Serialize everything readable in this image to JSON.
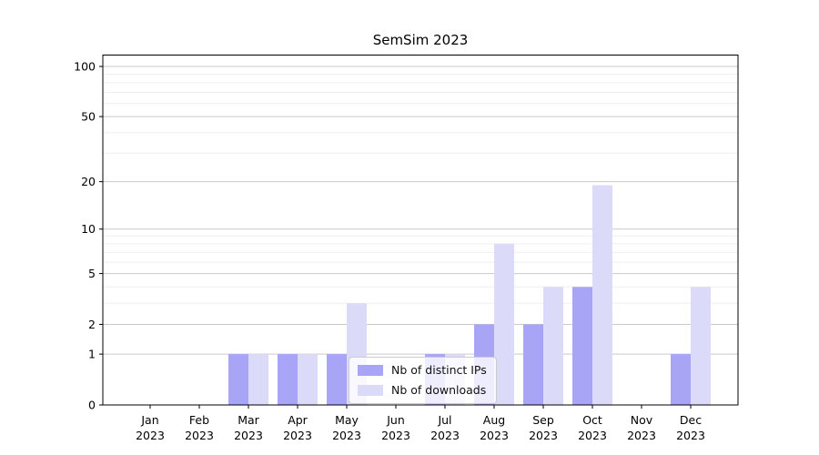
{
  "chart_data": {
    "type": "bar",
    "title": "SemSim 2023",
    "categories": [
      "Jan",
      "Feb",
      "Mar",
      "Apr",
      "May",
      "Jun",
      "Jul",
      "Aug",
      "Sep",
      "Oct",
      "Nov",
      "Dec"
    ],
    "x_tick_year": "2023",
    "series": [
      {
        "name": "Nb of distinct IPs",
        "color": "#a8a5f6",
        "values": [
          0,
          0,
          1,
          1,
          1,
          0,
          1,
          2,
          2,
          4,
          0,
          1
        ]
      },
      {
        "name": "Nb of downloads",
        "color": "#dcdaf9",
        "values": [
          0,
          0,
          1,
          1,
          3,
          0,
          1,
          8,
          4,
          19,
          0,
          4
        ]
      }
    ],
    "yscale": "log10(value+1)",
    "y_major_ticks": [
      0,
      1,
      2,
      5,
      10,
      20,
      50,
      100
    ],
    "y_minor_gridlines": [
      3,
      4,
      6,
      7,
      8,
      9,
      30,
      40,
      60,
      70,
      80,
      90
    ],
    "ylim": [
      0,
      117
    ],
    "grid": "horizontal",
    "legend_position": "inside-lower-center"
  },
  "colors": {
    "bar_dark": "#a8a5f6",
    "bar_light": "#dcdaf9",
    "grid_major": "#c9c9c9",
    "grid_minor": "#efefef",
    "spine": "#000000",
    "text": "#000000"
  }
}
